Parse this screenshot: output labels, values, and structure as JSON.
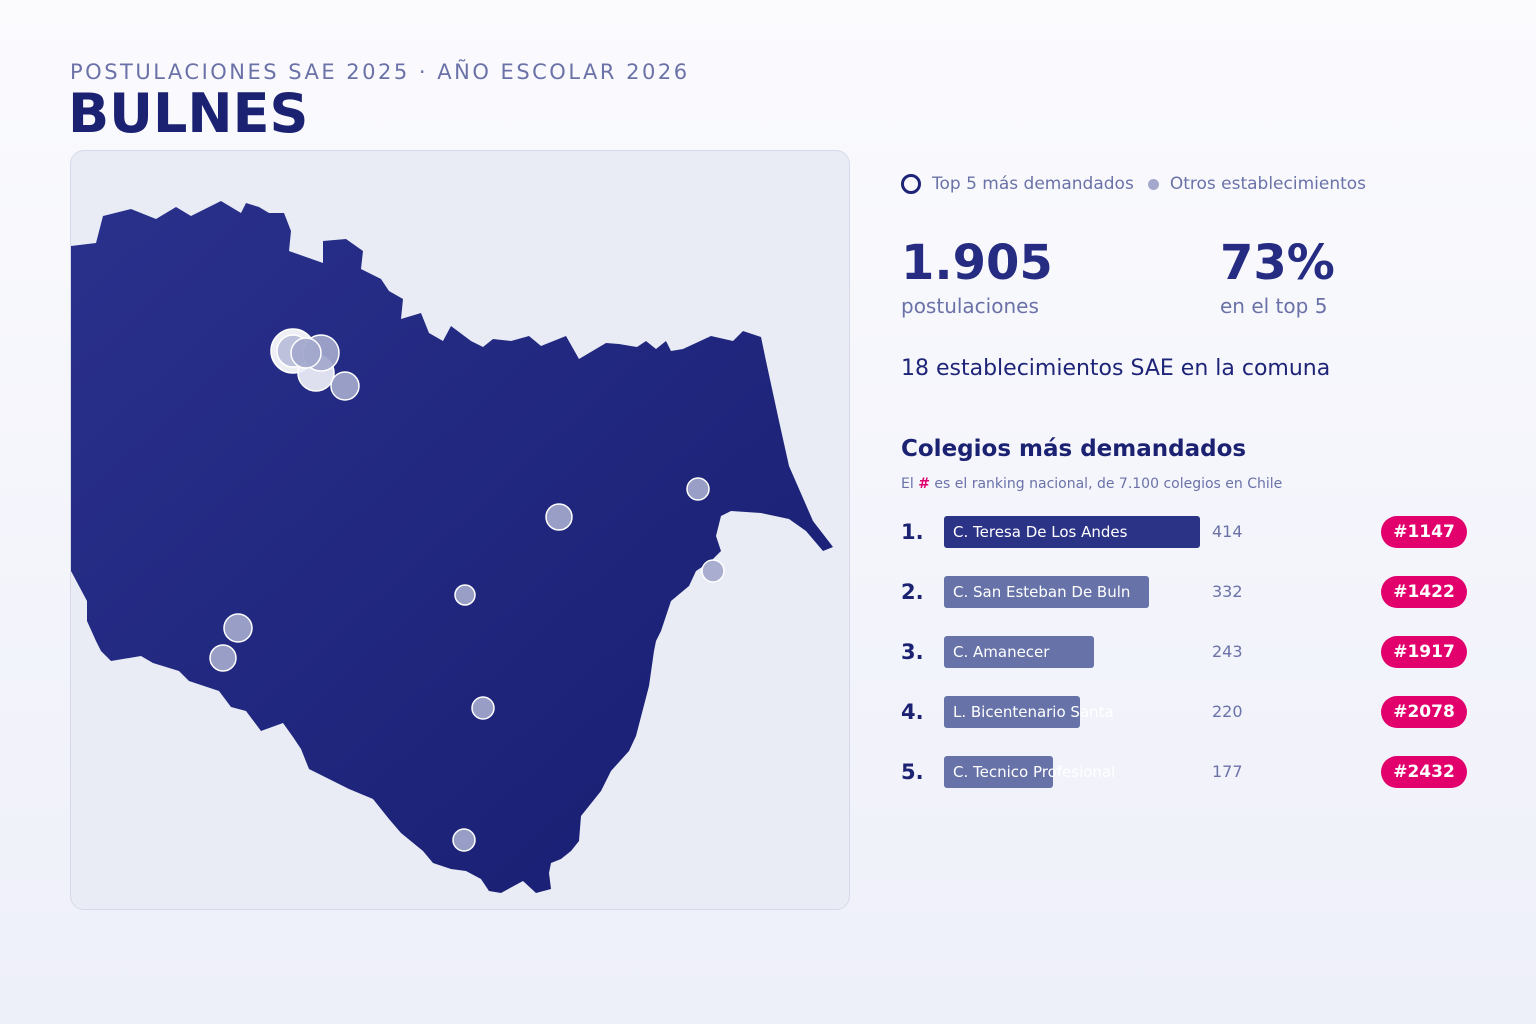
{
  "header": {
    "subtitle": "POSTULACIONES SAE 2025 · AÑO ESCOLAR 2026",
    "title": "BULNES"
  },
  "legend": {
    "top5_label": "Top 5 más demandados",
    "others_label": "Otros establecimientos"
  },
  "stats": {
    "applications_value": "1.905",
    "applications_label": "postulaciones",
    "top5_share_value": "73%",
    "top5_share_label": "en el top 5"
  },
  "schools_count_text": "18 establecimientos SAE en la comuna",
  "ranking": {
    "title": "Colegios más demandados",
    "note_prefix": "El",
    "note_hash": "#",
    "note_suffix": "es el ranking nacional, de 7.100 colegios en Chile",
    "max_value": 414,
    "items": [
      {
        "rank": "1.",
        "name": "C. Teresa De Los Andes",
        "value": 414,
        "national_rank": "#1147"
      },
      {
        "rank": "2.",
        "name": "C. San Esteban De Buln",
        "value": 332,
        "national_rank": "#1422"
      },
      {
        "rank": "3.",
        "name": "C. Amanecer",
        "value": 243,
        "national_rank": "#1917"
      },
      {
        "rank": "4.",
        "name": "L. Bicentenario Santa",
        "value": 220,
        "national_rank": "#2078"
      },
      {
        "rank": "5.",
        "name": "C. Tecnico Profesional",
        "value": 177,
        "national_rank": "#2432"
      }
    ]
  },
  "colors": {
    "commune_fill": "#232a85",
    "marker_fill": "#a3a8cc",
    "badge": "#e2006d",
    "bar_top": "#2b3387",
    "bar_other": "#6672a8"
  }
}
